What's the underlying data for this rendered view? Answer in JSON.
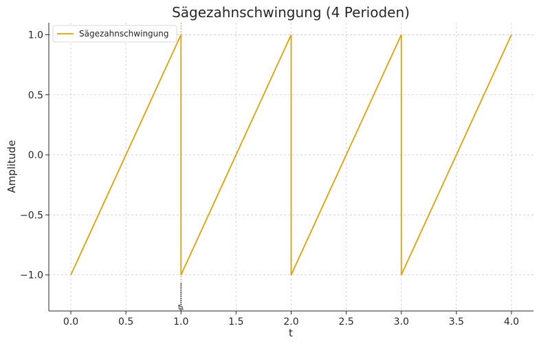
{
  "chart_data": {
    "type": "line",
    "title": "Sägezahnschwingung (4 Perioden)",
    "xlabel": "t",
    "ylabel": "Amplitude",
    "xlim": [
      -0.2,
      4.2
    ],
    "ylim": [
      -1.3,
      1.1
    ],
    "xticks": [
      "0.0",
      "0.5",
      "1.0",
      "1.5",
      "2.0",
      "2.5",
      "3.0",
      "3.5",
      "4.0"
    ],
    "xtick_values": [
      0,
      0.5,
      1,
      1.5,
      2,
      2.5,
      3,
      3.5,
      4
    ],
    "yticks": [
      "−1.0",
      "−0.5",
      "0.0",
      "0.5",
      "1.0"
    ],
    "ytick_values": [
      -1,
      -0.5,
      0,
      0.5,
      1
    ],
    "grid": true,
    "legend_position": "top-left",
    "series": [
      {
        "name": "Sägezahnschwingung",
        "color": "#E69F00",
        "x": [
          0,
          1,
          1,
          2,
          2,
          3,
          3,
          4
        ],
        "y": [
          -1,
          1,
          -1,
          1,
          -1,
          1,
          -1,
          1
        ]
      }
    ],
    "annotation": {
      "label": "t₁",
      "x": 1,
      "y_from": -1.3,
      "y_to": -1.07
    },
    "marker_line": {
      "x": 1,
      "color": "#E69F00"
    }
  }
}
